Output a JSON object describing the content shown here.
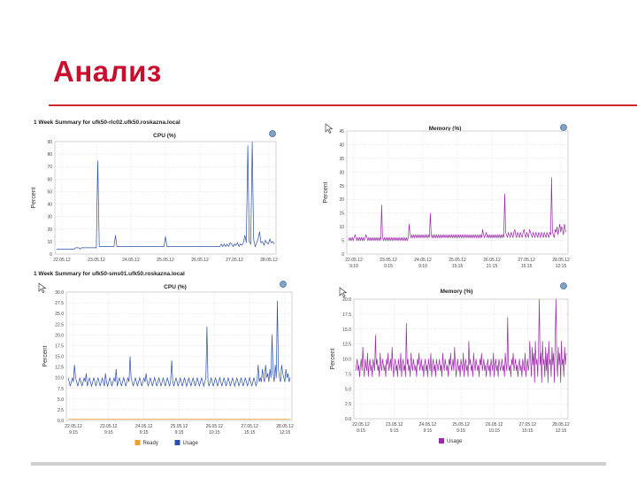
{
  "slide": {
    "title": "Анализ"
  },
  "charts": [
    {
      "id": "cpu1",
      "heading": "1 Week Summary for ufk50-rlc02.ufk50.roskazna.local",
      "title": "CPU (%)",
      "ylabel": "Percent",
      "yticks": [
        "0",
        "10",
        "20",
        "30",
        "40",
        "50",
        "60",
        "70",
        "80",
        "90"
      ],
      "xticks": [
        [
          "22.05.12"
        ],
        [
          "23.05.12"
        ],
        [
          "24.05.12"
        ],
        [
          "25.05.12"
        ],
        [
          "26.05.12"
        ],
        [
          "27.05.12"
        ],
        [
          "28.05.12"
        ]
      ],
      "legend": []
    },
    {
      "id": "mem1",
      "heading": "",
      "title": "Memory (%)",
      "ylabel": "Percent",
      "yticks": [
        "0",
        "5",
        "10",
        "15",
        "20",
        "25",
        "30",
        "35",
        "40",
        "45"
      ],
      "xticks": [
        [
          "22.05.12",
          "9:10"
        ],
        [
          "23.05.12",
          "0:15"
        ],
        [
          "24.05.12",
          "9:10"
        ],
        [
          "25.05.12",
          "15:15"
        ],
        [
          "26.05.12",
          "21:15"
        ],
        [
          "27.05.12",
          "15:15"
        ],
        [
          "28.05.12",
          "12:15"
        ]
      ],
      "legend": []
    },
    {
      "id": "cpu2",
      "heading": "1 Week Summary for ufk50-sms01.ufk50.roskazna.local",
      "title": "CPU (%)",
      "ylabel": "Percent",
      "yticks": [
        "0.0",
        "2.5",
        "5.0",
        "7.5",
        "10.0",
        "12.5",
        "15.0",
        "17.5",
        "20.0",
        "22.5",
        "25.0",
        "27.5",
        "30.0"
      ],
      "xticks": [
        [
          "22.05.12",
          "9:15"
        ],
        [
          "23.05.12",
          "9:15"
        ],
        [
          "24.05.12",
          "9:15"
        ],
        [
          "25.05.12",
          "9:15"
        ],
        [
          "26.05.12",
          "10:15"
        ],
        [
          "27.05.12",
          "15:15"
        ],
        [
          "28.05.12",
          "12:15"
        ]
      ],
      "legend": [
        {
          "label": "Ready",
          "color": "#f0a030"
        },
        {
          "label": "Usage",
          "color": "#2c4fa8"
        }
      ]
    },
    {
      "id": "mem2",
      "heading": "",
      "title": "Memory (%)",
      "ylabel": "Percent",
      "yticks": [
        "0.0",
        "2.5",
        "5.0",
        "7.5",
        "10.0",
        "12.5",
        "15.0",
        "17.5",
        "20.0"
      ],
      "xticks": [
        [
          "22.05.12",
          "0:15"
        ],
        [
          "23.05.12",
          "9:15"
        ],
        [
          "24.05.12",
          "9:15"
        ],
        [
          "25.05.12",
          "9:15"
        ],
        [
          "26.05.12",
          "10:15"
        ],
        [
          "27.05.12",
          "15:15"
        ],
        [
          "28.05.12",
          "12:15"
        ]
      ],
      "legend": [
        {
          "label": "Usage",
          "color": "#9a2aa8"
        }
      ]
    }
  ],
  "colors": {
    "cpu": "#2c4fa8",
    "memory": "#9a2aa8",
    "ready": "#f0a030",
    "grid": "#d8d8d8",
    "title": "#c8102e"
  },
  "icons": [
    "refresh-icon",
    "cursor-icon"
  ],
  "chart_data": [
    {
      "type": "line",
      "title": "CPU (%)",
      "xlabel": "",
      "ylabel": "Percent",
      "ylim": [
        0,
        90
      ],
      "series": [
        {
          "name": "",
          "values": [
            4,
            4,
            4,
            4,
            4,
            4,
            4,
            4,
            4,
            4,
            4,
            4,
            4,
            5,
            5,
            5,
            4,
            5,
            5,
            5,
            5,
            5,
            5,
            5,
            5,
            5,
            5,
            5,
            75,
            6,
            6,
            6,
            6,
            6,
            6,
            6,
            6,
            6,
            6,
            6,
            15,
            6,
            6,
            6,
            6,
            6,
            6,
            6,
            6,
            6,
            6,
            6,
            6,
            6,
            6,
            6,
            6,
            6,
            6,
            6,
            6,
            6,
            6,
            6,
            6,
            6,
            6,
            6,
            6,
            6,
            6,
            6,
            6,
            6,
            14,
            6,
            6,
            6,
            6,
            6,
            6,
            6,
            6,
            6,
            6,
            6,
            6,
            6,
            6,
            6,
            6,
            6,
            6,
            6,
            6,
            6,
            6,
            6,
            6,
            6,
            6,
            6,
            6,
            6,
            6,
            6,
            6,
            6,
            6,
            6,
            6,
            6,
            8,
            6,
            8,
            6,
            8,
            6,
            9,
            8,
            6,
            8,
            7,
            9,
            6,
            8,
            7,
            9,
            15,
            9,
            87,
            10,
            8,
            90,
            12,
            6,
            9,
            12,
            18,
            9,
            10,
            7,
            11,
            9,
            8,
            12,
            9,
            10,
            8
          ]
        }
      ]
    },
    {
      "type": "line",
      "title": "Memory (%)",
      "xlabel": "",
      "ylabel": "Percent",
      "ylim": [
        0,
        45
      ],
      "series": [
        {
          "name": "",
          "values": [
            6,
            5,
            6,
            5,
            6,
            5,
            6,
            7,
            6,
            5,
            6,
            5,
            6,
            5,
            6,
            5,
            6,
            5,
            6,
            7,
            6,
            5,
            6,
            5,
            6,
            5,
            6,
            5,
            6,
            5,
            6,
            5,
            6,
            5,
            6,
            5,
            18,
            6,
            5,
            6,
            5,
            6,
            5,
            6,
            5,
            6,
            5,
            6,
            5,
            6,
            5,
            6,
            5,
            6,
            5,
            6,
            5,
            6,
            5,
            6,
            5,
            6,
            5,
            6,
            5,
            6,
            11,
            7,
            6,
            7,
            6,
            7,
            6,
            7,
            6,
            7,
            6,
            7,
            6,
            7,
            6,
            7,
            6,
            7,
            6,
            7,
            6,
            7,
            6,
            15,
            7,
            6,
            7,
            6,
            7,
            6,
            7,
            6,
            7,
            6,
            7,
            6,
            7,
            6,
            7,
            6,
            7,
            6,
            7,
            6,
            7,
            6,
            7,
            6,
            7,
            6,
            7,
            6,
            7,
            6,
            7,
            6,
            7,
            6,
            7,
            6,
            7,
            6,
            7,
            6,
            7,
            6,
            7,
            6,
            7,
            6,
            7,
            6,
            7,
            6,
            7,
            6,
            7,
            6,
            7,
            6,
            9,
            7,
            6,
            7,
            8,
            6,
            7,
            6,
            7,
            6,
            7,
            6,
            7,
            6,
            7,
            6,
            7,
            6,
            7,
            6,
            7,
            6,
            7,
            6,
            22,
            8,
            7,
            6,
            8,
            7,
            6,
            8,
            7,
            6,
            8,
            9,
            7,
            6,
            8,
            7,
            6,
            8,
            7,
            6,
            8,
            9,
            7,
            6,
            8,
            7,
            6,
            9,
            8,
            7,
            6,
            8,
            7,
            6,
            8,
            7,
            6,
            8,
            7,
            6,
            8,
            7,
            6,
            8,
            7,
            6,
            8,
            7,
            6,
            8,
            7,
            28,
            8,
            7,
            6,
            9,
            8,
            10,
            7,
            9,
            11,
            8,
            10,
            9,
            7,
            11,
            9,
            8
          ]
        }
      ]
    },
    {
      "type": "line",
      "title": "CPU (%)",
      "xlabel": "",
      "ylabel": "Percent",
      "ylim": [
        0,
        30
      ],
      "series": [
        {
          "name": "Ready",
          "values": [
            0.3,
            0.3,
            0.3,
            0.3,
            0.3,
            0.3,
            0.3,
            0.3,
            0.3,
            0.3
          ]
        },
        {
          "name": "Usage",
          "values": [
            10,
            9,
            8,
            9,
            10,
            9,
            13,
            10,
            9,
            8,
            9,
            10,
            9,
            8,
            9,
            10,
            9,
            11,
            8,
            9,
            10,
            9,
            8,
            9,
            10,
            9,
            8,
            9,
            10,
            9,
            8,
            9,
            10,
            9,
            8,
            11,
            9,
            8,
            9,
            10,
            9,
            8,
            9,
            10,
            9,
            12,
            8,
            9,
            10,
            9,
            8,
            9,
            10,
            9,
            8,
            9,
            10,
            9,
            15,
            10,
            9,
            8,
            9,
            10,
            9,
            8,
            9,
            10,
            9,
            8,
            9,
            10,
            9,
            11,
            9,
            8,
            9,
            10,
            9,
            8,
            9,
            10,
            9,
            8,
            9,
            10,
            9,
            8,
            9,
            10,
            9,
            8,
            9,
            10,
            9,
            8,
            9,
            14,
            9,
            8,
            9,
            10,
            9,
            8,
            9,
            10,
            9,
            8,
            9,
            10,
            9,
            8,
            9,
            10,
            9,
            8,
            9,
            10,
            9,
            8,
            9,
            10,
            9,
            8,
            9,
            10,
            9,
            8,
            9,
            10,
            22,
            9,
            8,
            9,
            10,
            9,
            8,
            9,
            10,
            9,
            8,
            9,
            10,
            9,
            8,
            9,
            10,
            9,
            8,
            9,
            10,
            9,
            8,
            9,
            10,
            9,
            8,
            9,
            10,
            9,
            8,
            9,
            10,
            9,
            8,
            9,
            10,
            9,
            8,
            9,
            10,
            9,
            8,
            9,
            10,
            9,
            8,
            9,
            13,
            9,
            10,
            9,
            12,
            10,
            9,
            13,
            10,
            11,
            9,
            12,
            10,
            20,
            11,
            9,
            13,
            10,
            28,
            12,
            10,
            9,
            13,
            11,
            10,
            9,
            12,
            10,
            11,
            9,
            10
          ]
        }
      ]
    },
    {
      "type": "line",
      "title": "Memory (%)",
      "xlabel": "",
      "ylabel": "Percent",
      "ylim": [
        0,
        20
      ],
      "series": [
        {
          "name": "Usage",
          "values": [
            8,
            9,
            10,
            8,
            9,
            7,
            9,
            10,
            8,
            12,
            9,
            7,
            10,
            9,
            8,
            11,
            7,
            9,
            10,
            8,
            9,
            7,
            10,
            9,
            8,
            14,
            9,
            10,
            8,
            9,
            7,
            11,
            9,
            8,
            10,
            9,
            8,
            9,
            7,
            10,
            9,
            11,
            8,
            9,
            10,
            8,
            12,
            9,
            7,
            9,
            10,
            8,
            9,
            7,
            10,
            9,
            8,
            11,
            7,
            9,
            10,
            8,
            9,
            7,
            16,
            9,
            10,
            8,
            9,
            7,
            11,
            9,
            8,
            10,
            9,
            8,
            9,
            7,
            10,
            9,
            11,
            8,
            9,
            10,
            8,
            9,
            7,
            9,
            10,
            8,
            9,
            7,
            10,
            9,
            8,
            11,
            7,
            9,
            10,
            8,
            9,
            7,
            10,
            9,
            8,
            9,
            10,
            8,
            9,
            7,
            11,
            9,
            8,
            10,
            9,
            8,
            9,
            7,
            10,
            9,
            11,
            8,
            9,
            10,
            8,
            12,
            9,
            7,
            9,
            10,
            8,
            9,
            7,
            10,
            9,
            8,
            11,
            7,
            9,
            10,
            8,
            9,
            7,
            13,
            9,
            10,
            8,
            9,
            7,
            11,
            9,
            8,
            10,
            9,
            8,
            9,
            7,
            10,
            9,
            11,
            8,
            9,
            10,
            8,
            9,
            7,
            9,
            10,
            8,
            9,
            7,
            10,
            9,
            8,
            11,
            7,
            9,
            10,
            8,
            9,
            7,
            10,
            9,
            8,
            9,
            10,
            8,
            9,
            7,
            11,
            9,
            8,
            17,
            9,
            8,
            9,
            7,
            10,
            9,
            11,
            8,
            9,
            10,
            8,
            9,
            7,
            9,
            10,
            8,
            9,
            7,
            10,
            9,
            8,
            11,
            7,
            9,
            10,
            8,
            9,
            13,
            10,
            7,
            12,
            9,
            11,
            6,
            13,
            9,
            10,
            7,
            12,
            21,
            9,
            11,
            6,
            13,
            9,
            10,
            7,
            12,
            8,
            11,
            6,
            13,
            9,
            10,
            7,
            12,
            9,
            11,
            6,
            13,
            20,
            10,
            7,
            12,
            9,
            11,
            6,
            13,
            9,
            10,
            7,
            12,
            9,
            11
          ]
        }
      ]
    }
  ]
}
